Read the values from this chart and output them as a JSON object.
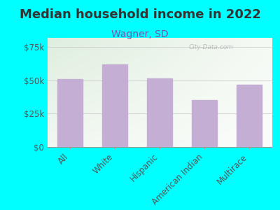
{
  "title": "Median household income in 2022",
  "subtitle": "Wagner, SD",
  "categories": [
    "All",
    "White",
    "Hispanic",
    "American Indian",
    "Multirace"
  ],
  "values": [
    51000,
    62000,
    51500,
    35000,
    47000
  ],
  "bar_color": "#c4aed4",
  "background_outer": "#00FFFF",
  "background_inner_topleft": "#deeedd",
  "background_inner_white": "#f8f8f8",
  "title_color": "#333333",
  "subtitle_color": "#7755aa",
  "tick_label_color": "#555555",
  "ytick_labels": [
    "$0",
    "$25k",
    "$50k",
    "$75k"
  ],
  "ytick_values": [
    0,
    25000,
    50000,
    75000
  ],
  "ylim": [
    0,
    82000
  ],
  "watermark": "City-Data.com",
  "title_fontsize": 13,
  "subtitle_fontsize": 10,
  "tick_fontsize": 8.5
}
